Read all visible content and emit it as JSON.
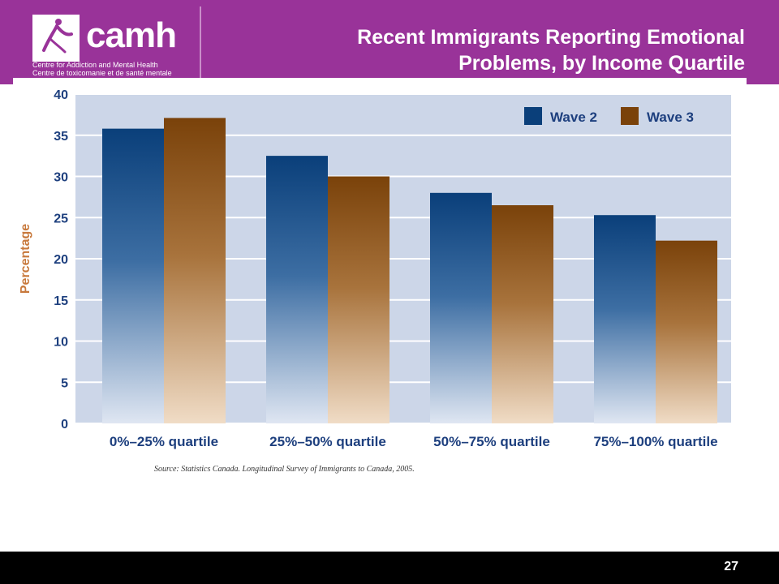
{
  "header": {
    "logo_text": "camh",
    "org_line_1": "Centre for Addiction and Mental Health",
    "org_line_2": "Centre de toxicomanie et de santé mentale",
    "title_line_1": "Recent Immigrants Reporting Emotional",
    "title_line_2": "Problems, by Income Quartile"
  },
  "chart_data": {
    "type": "bar",
    "title": "Recent Immigrants Reporting Emotional Problems, by Income Quartile",
    "xlabel": "",
    "ylabel": "Percentage",
    "categories": [
      "0%–25% quartile",
      "25%–50% quartile",
      "50%–75% quartile",
      "75%–100% quartile"
    ],
    "series": [
      {
        "name": "Wave 2",
        "values": [
          35.8,
          32.5,
          28.0,
          25.3
        ]
      },
      {
        "name": "Wave 3",
        "values": [
          37.1,
          30.0,
          26.5,
          22.2
        ]
      }
    ],
    "ylim": [
      0,
      40
    ],
    "yticks": [
      0,
      5,
      10,
      15,
      20,
      25,
      30,
      35,
      40
    ],
    "grid": true,
    "legend_position": "top-right",
    "colors": {
      "Wave 2": "#0a3f7a",
      "Wave 3": "#7a420a",
      "plot_background": "#ccd6e8",
      "axis_text": "#1d3f7e",
      "ylabel": "#c8793c"
    }
  },
  "source_note": "Source: Statistics Canada. Longitudinal Survey of Immigrants to Canada, 2005.",
  "footer": {
    "page_number": "27"
  }
}
